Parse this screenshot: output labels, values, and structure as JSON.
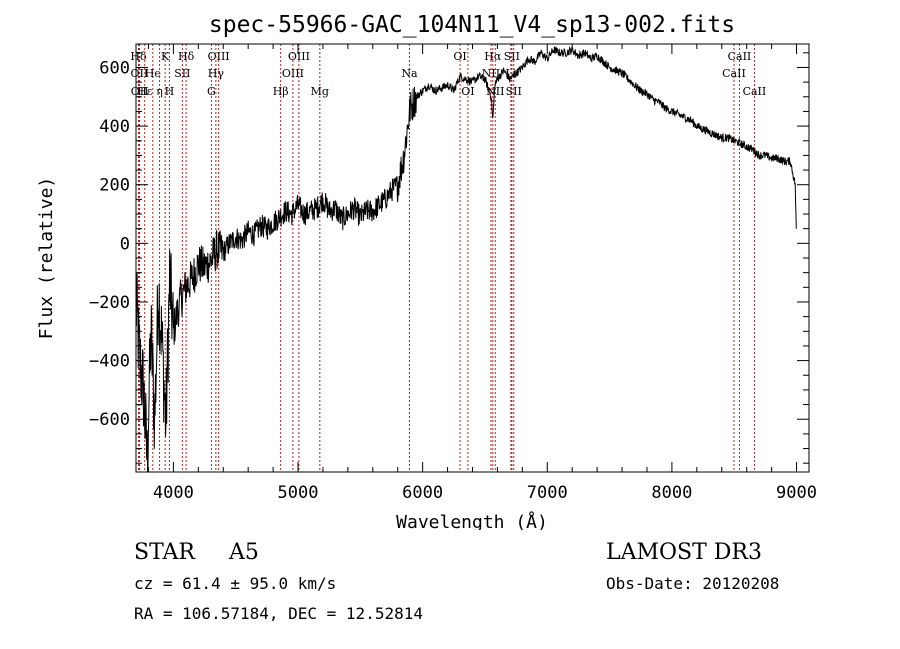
{
  "chart_data": {
    "type": "line",
    "title": "spec-55966-GAC_104N11_V4_sp13-002.fits",
    "xlabel": "Wavelength (Å)",
    "ylabel": "Flux (relative)",
    "xlim": [
      3700,
      9100
    ],
    "ylim": [
      -780,
      680
    ],
    "x_ticks": [
      4000,
      5000,
      6000,
      7000,
      8000,
      9000
    ],
    "y_ticks": [
      -600,
      -400,
      -200,
      0,
      200,
      400,
      600
    ],
    "grid": false,
    "series": [
      {
        "name": "flux",
        "x": [
          3700,
          3730,
          3760,
          3790,
          3820,
          3850,
          3880,
          3910,
          3940,
          3970,
          4000,
          4050,
          4100,
          4150,
          4200,
          4250,
          4300,
          4350,
          4400,
          4450,
          4500,
          4550,
          4600,
          4650,
          4700,
          4750,
          4800,
          4850,
          4900,
          4950,
          5000,
          5050,
          5100,
          5150,
          5200,
          5250,
          5300,
          5350,
          5400,
          5450,
          5500,
          5550,
          5600,
          5650,
          5700,
          5750,
          5800,
          5850,
          5880,
          5900,
          5950,
          6000,
          6050,
          6100,
          6150,
          6200,
          6250,
          6300,
          6350,
          6400,
          6450,
          6500,
          6550,
          6563,
          6580,
          6600,
          6650,
          6700,
          6750,
          6800,
          6850,
          6900,
          6950,
          7000,
          7050,
          7100,
          7150,
          7200,
          7250,
          7300,
          7350,
          7400,
          7450,
          7500,
          7550,
          7600,
          7650,
          7700,
          7750,
          7800,
          7850,
          7900,
          7950,
          8000,
          8050,
          8100,
          8150,
          8200,
          8250,
          8300,
          8350,
          8400,
          8450,
          8500,
          8550,
          8600,
          8650,
          8700,
          8750,
          8800,
          8850,
          8900,
          8950,
          8990,
          9000
        ],
        "y": [
          -200,
          -400,
          -500,
          -740,
          -300,
          -600,
          -150,
          -350,
          -620,
          -120,
          -300,
          -200,
          -150,
          -120,
          -70,
          -80,
          -60,
          -20,
          -30,
          0,
          20,
          10,
          40,
          30,
          60,
          50,
          70,
          90,
          110,
          100,
          130,
          100,
          110,
          120,
          150,
          110,
          120,
          80,
          100,
          120,
          90,
          110,
          110,
          130,
          150,
          180,
          200,
          300,
          400,
          460,
          500,
          520,
          540,
          520,
          530,
          540,
          520,
          570,
          560,
          550,
          570,
          560,
          500,
          420,
          540,
          560,
          590,
          560,
          580,
          600,
          630,
          620,
          650,
          630,
          660,
          650,
          650,
          660,
          640,
          650,
          630,
          640,
          620,
          600,
          590,
          580,
          560,
          540,
          520,
          510,
          490,
          480,
          460,
          450,
          440,
          430,
          420,
          400,
          390,
          380,
          370,
          360,
          360,
          350,
          340,
          330,
          320,
          300,
          300,
          290,
          290,
          280,
          280,
          200,
          0
        ]
      }
    ],
    "line_markers": [
      {
        "label": "Hδ",
        "x": 3720,
        "row": 0
      },
      {
        "label": "OII",
        "x": 3727,
        "row": 1
      },
      {
        "label": "OII",
        "x": 3729,
        "row": 2
      },
      {
        "label": "Hε",
        "x": 3770,
        "row": 2
      },
      {
        "label": "He",
        "x": 3835,
        "row": 1
      },
      {
        "label": "K",
        "x": 3934,
        "row": 0
      },
      {
        "label": "η",
        "x": 3889,
        "row": 2
      },
      {
        "label": "H",
        "x": 3968,
        "row": 2
      },
      {
        "label": "SII",
        "x": 4072,
        "row": 1
      },
      {
        "label": "Hδ",
        "x": 4102,
        "row": 0
      },
      {
        "label": "OIII",
        "x": 4363,
        "row": 0
      },
      {
        "label": "Hγ",
        "x": 4341,
        "row": 1
      },
      {
        "label": "G",
        "x": 4305,
        "row": 2
      },
      {
        "label": "Hβ",
        "x": 4861,
        "row": 2
      },
      {
        "label": "OIII",
        "x": 4959,
        "row": 1
      },
      {
        "label": "OIII",
        "x": 5007,
        "row": 0
      },
      {
        "label": "Mg",
        "x": 5175,
        "row": 2
      },
      {
        "label": "Na",
        "x": 5894,
        "row": 1
      },
      {
        "label": "OI",
        "x": 6300,
        "row": 0
      },
      {
        "label": "OI",
        "x": 6363,
        "row": 2
      },
      {
        "label": "Hα",
        "x": 6563,
        "row": 0
      },
      {
        "label": "NII",
        "x": 6548,
        "row": 1
      },
      {
        "label": "NII",
        "x": 6583,
        "row": 2
      },
      {
        "label": "SII",
        "x": 6716,
        "row": 0
      },
      {
        "label": "SII",
        "x": 6731,
        "row": 2
      },
      {
        "label": "Li",
        "x": 6708,
        "row": 1
      },
      {
        "label": "CaII",
        "x": 8542,
        "row": 0
      },
      {
        "label": "CaII",
        "x": 8498,
        "row": 1
      },
      {
        "label": "CaII",
        "x": 8662,
        "row": 2
      }
    ]
  },
  "info": {
    "object_class": "STAR",
    "subclass": "A5",
    "survey": "LAMOST DR3",
    "redshift_text": "cz = 61.4 ± 95.0 km/s",
    "obs_date_text": "Obs-Date: 20120208",
    "coords_text": "RA = 106.57184, DEC =  12.52814"
  }
}
